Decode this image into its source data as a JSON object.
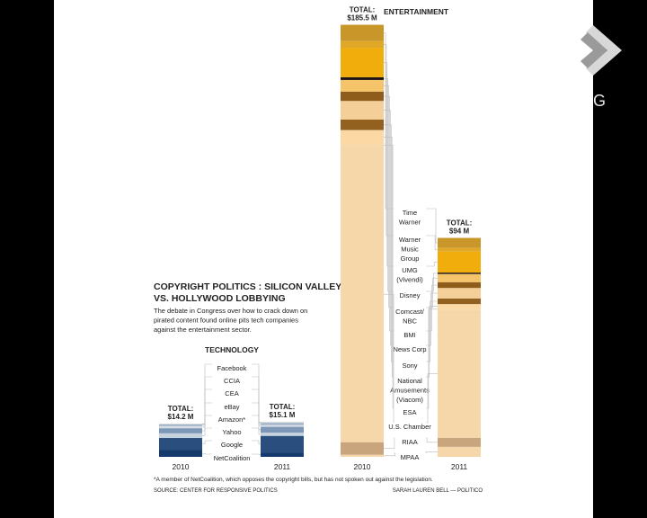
{
  "chart_data": {
    "type": "bar",
    "title": "COPYRIGHT POLITICS : SILICON VALLEY VS. HOLLYWOOD LOBBYING",
    "title_lines": [
      "COPYRIGHT POLITICS : SILICON VALLEY",
      "VS. HOLLYWOOD LOBBYING"
    ],
    "subtitle_lines": [
      "The debate in Congress over how to crack down on",
      "pirated content found online pits tech companies",
      "against the entertainment sector."
    ],
    "footnote": "*A member of NetCoalition, which opposes the copyright bills, but has not spoken out against the legislation.",
    "source": "SOURCE: CENTER FOR RESPONSIVE POLITICS",
    "credit": "SARAH LAUREN BELL — POLITICO",
    "unit": "$ millions",
    "groups": [
      {
        "name": "TECHNOLOGY",
        "bars": [
          {
            "year": "2010",
            "total": 14.2,
            "total_lines": [
              "TOTAL:",
              "$14.2 M"
            ]
          },
          {
            "year": "2011",
            "total": 15.1,
            "total_lines": [
              "TOTAL:",
              "$15.1 M"
            ]
          }
        ],
        "segments": [
          {
            "label": "Facebook",
            "color": "#dcdcdc",
            "values": [
              0.1,
              0.3
            ]
          },
          {
            "label": "CCIA",
            "color": "#c6cfd8",
            "values": [
              0.2,
              0.2
            ]
          },
          {
            "label": "CEA",
            "color": "#9fb3c8",
            "values": [
              0.7,
              0.9
            ]
          },
          {
            "label": "eBay",
            "color": "#d8dee6",
            "values": [
              0.9,
              0.8
            ]
          },
          {
            "label": "Amazon*",
            "color": "#7d98b6",
            "values": [
              2.2,
              2.5
            ]
          },
          {
            "label": "Yahoo",
            "color": "#c5d1dd",
            "values": [
              2.0,
              1.4
            ]
          },
          {
            "label": "Google",
            "color": "#2a4f7e",
            "values": [
              5.2,
              7.1
            ]
          },
          {
            "label": "NetCoalition",
            "color": "#163a6b",
            "values": [
              2.9,
              1.9
            ]
          }
        ]
      },
      {
        "name": "ENTERTAINMENT",
        "bars": [
          {
            "year": "2010",
            "total": 185.5,
            "total_lines": [
              "TOTAL:",
              "$185.5 M"
            ]
          },
          {
            "year": "2011",
            "total": 94,
            "total_lines": [
              "TOTAL:",
              "$94 M"
            ]
          }
        ],
        "segments": [
          {
            "label": "Time Warner",
            "label_lines": [
              "Time",
              "Warner"
            ],
            "color": "#c9962a",
            "values": [
              7.0,
              4.3
            ]
          },
          {
            "label": "Warner Music Group",
            "label_lines": [
              "Warner",
              "Music",
              "Group"
            ],
            "color": "#e0a826",
            "values": [
              3.0,
              1.6
            ]
          },
          {
            "label": "UMG (Vivendi)",
            "label_lines": [
              "UMG",
              "(Vivendi)"
            ],
            "color": "#f1ad0c",
            "values": [
              12.5,
              9.0
            ]
          },
          {
            "label": "Disney",
            "color": "#1d1410",
            "values": [
              1.2,
              0.6
            ]
          },
          {
            "label": "Comcast/NBC",
            "label_lines": [
              "Comcast/",
              "NBC"
            ],
            "color": "#f5c46a",
            "values": [
              5.0,
              3.5
            ]
          },
          {
            "label": "BMI",
            "color": "#8e5d1c",
            "values": [
              4.0,
              2.5
            ]
          },
          {
            "label": "News Corp",
            "color": "#f5cf98",
            "values": [
              8.0,
              4.5
            ]
          },
          {
            "label": "Sony",
            "color": "#92601f",
            "values": [
              4.5,
              2.4
            ]
          },
          {
            "label": "National Amusements (Viacom)",
            "label_lines": [
              "National",
              "Amusements",
              "(Viacom)"
            ],
            "color": "#fbd8a4",
            "values": [
              6.0,
              2.0
            ]
          },
          {
            "label": "ESA",
            "color": "#f6d6a7",
            "values": [
              1.0,
              0.4
            ]
          },
          {
            "label": "U.S. Chamber",
            "color": "#f6d7aa",
            "values": [
              127.0,
              55.0
            ]
          },
          {
            "label": "RIAA",
            "color": "#c9a57e",
            "values": [
              5.4,
              3.9
            ]
          },
          {
            "label": "MPAA",
            "color": "#f6d7aa",
            "values": [
              0.9,
              4.3
            ]
          }
        ]
      }
    ]
  },
  "logo": {
    "letter": "G",
    "color": "#e6e6e6"
  }
}
